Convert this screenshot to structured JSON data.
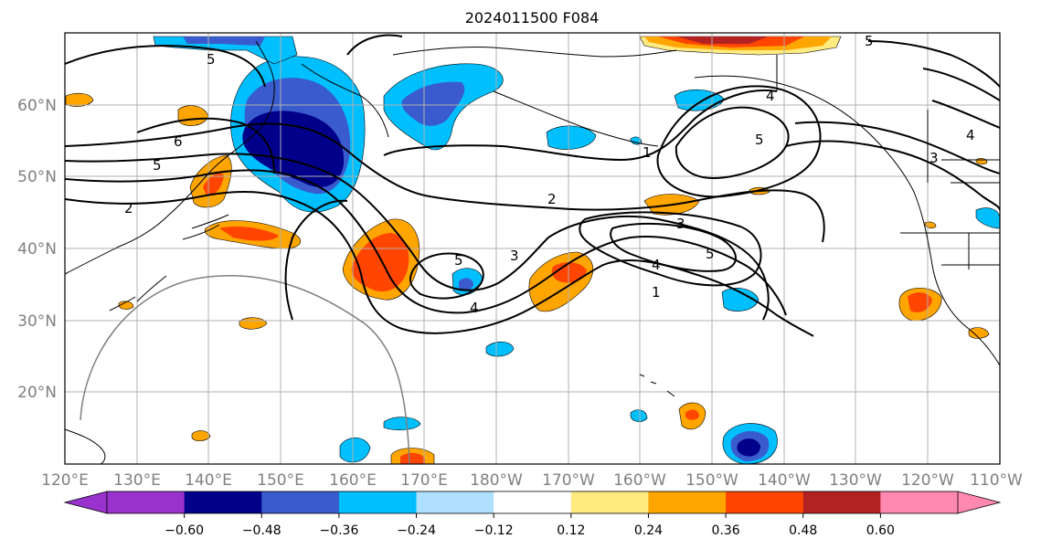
{
  "title": "2024011500 F084",
  "map": {
    "projection": "cylindrical",
    "lon_range": [
      120,
      250
    ],
    "lat_range": [
      10,
      70
    ],
    "gridlines": true,
    "lon_tick_labels": [
      "120°E",
      "130°E",
      "140°E",
      "150°E",
      "160°E",
      "170°E",
      "180°W",
      "170°W",
      "160°W",
      "150°W",
      "140°W",
      "130°W",
      "120°W",
      "110°W"
    ],
    "lat_tick_labels": [
      "20°N",
      "30°N",
      "40°N",
      "50°N",
      "60°N"
    ],
    "contour_labels": [
      "5",
      "6",
      "5",
      "2",
      "2",
      "3",
      "5",
      "4",
      "3",
      "4",
      "5",
      "1",
      "1",
      "4",
      "5",
      "3",
      "4",
      "5"
    ]
  },
  "colorbar": {
    "orientation": "horizontal",
    "extend": "both",
    "tick_labels": [
      "−0.60",
      "−0.48",
      "−0.36",
      "−0.24",
      "−0.12",
      "0.12",
      "0.24",
      "0.36",
      "0.48",
      "0.60"
    ],
    "colors": [
      "#9932cc",
      "#00008b",
      "#3a5bcd",
      "#00bfff",
      "#b0e0ff",
      "#ffffff",
      "#ffeb80",
      "#ffa500",
      "#ff4500",
      "#b22222",
      "#ff88b0"
    ]
  }
}
